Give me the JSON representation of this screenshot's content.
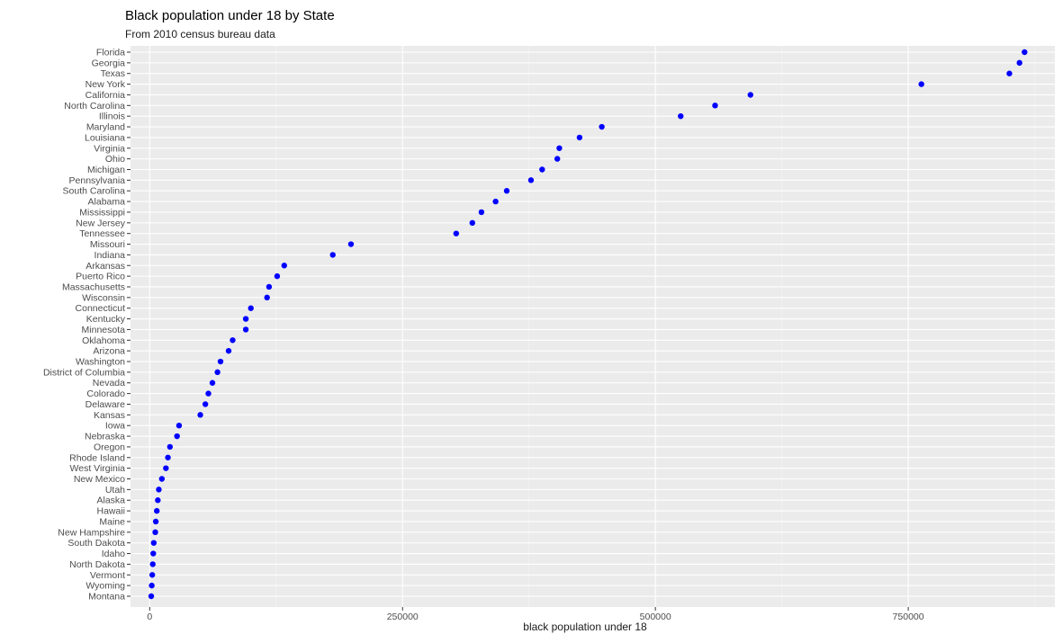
{
  "chart_data": {
    "type": "scatter",
    "title": "Black population under 18 by State",
    "subtitle": "From 2010 census bureau data",
    "xlabel": "black population under 18",
    "ylabel": "",
    "xlim": [
      -19000,
      895000
    ],
    "xticks": [
      0,
      250000,
      500000,
      750000
    ],
    "xtick_labels": [
      "0",
      "250000",
      "500000",
      "750000"
    ],
    "grid": true,
    "legend": "none",
    "point_color": "#0000ff",
    "panel_color": "#ebebeb",
    "categories": [
      "Florida",
      "Georgia",
      "Texas",
      "New York",
      "California",
      "North Carolina",
      "Illinois",
      "Maryland",
      "Louisiana",
      "Virginia",
      "Ohio",
      "Michigan",
      "Pennsylvania",
      "South Carolina",
      "Alabama",
      "Mississippi",
      "New Jersey",
      "Tennessee",
      "Missouri",
      "Indiana",
      "Arkansas",
      "Puerto Rico",
      "Massachusetts",
      "Wisconsin",
      "Connecticut",
      "Kentucky",
      "Minnesota",
      "Oklahoma",
      "Arizona",
      "Washington",
      "District of Columbia",
      "Nevada",
      "Colorado",
      "Delaware",
      "Kansas",
      "Iowa",
      "Nebraska",
      "Oregon",
      "Rhode Island",
      "West Virginia",
      "New Mexico",
      "Utah",
      "Alaska",
      "Hawaii",
      "Maine",
      "New Hampshire",
      "South Dakota",
      "Idaho",
      "North Dakota",
      "Vermont",
      "Wyoming",
      "Montana"
    ],
    "values": [
      865000,
      860000,
      850000,
      763000,
      594000,
      559000,
      525000,
      447000,
      425000,
      405000,
      403000,
      388000,
      377000,
      353000,
      342000,
      328000,
      319000,
      303000,
      199000,
      181000,
      133000,
      126000,
      118000,
      116000,
      100000,
      95000,
      95000,
      82000,
      78000,
      70000,
      67000,
      62000,
      58000,
      55000,
      50000,
      29000,
      27000,
      20000,
      18000,
      16000,
      12000,
      9000,
      8000,
      7000,
      6000,
      5500,
      4000,
      3500,
      3000,
      2500,
      2000,
      1500
    ]
  }
}
